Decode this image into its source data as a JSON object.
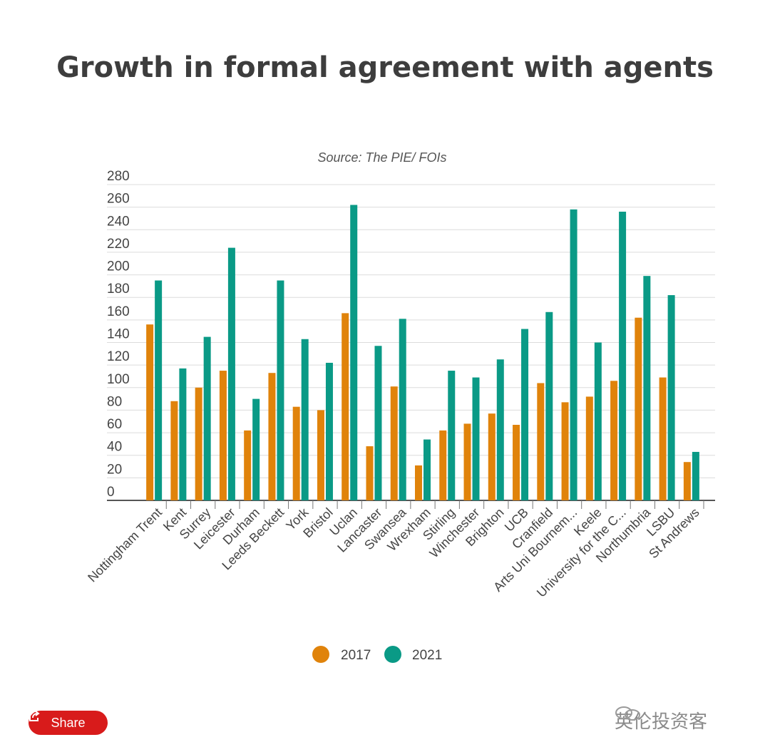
{
  "chart_data": {
    "type": "bar",
    "title": "Growth in formal agreement with agents",
    "subtitle": "Source: The PIE/ FOIs",
    "categories": [
      "Nottingham Trent",
      "Kent",
      "Surrey",
      "Leicester",
      "Durham",
      "Leeds Beckett",
      "York",
      "Bristol",
      "Uclan",
      "Lancaster",
      "Swansea",
      "Wrexham",
      "Stirling",
      "Winchester",
      "Brighton",
      "UCB",
      "Cranfield",
      "Arts Uni Bournem...",
      "Keele",
      "University for the C...",
      "Northumbria",
      "LSBU",
      "St Andrews"
    ],
    "series": [
      {
        "name": "2017",
        "color": "#e0830b",
        "values": [
          156,
          88,
          100,
          115,
          62,
          113,
          83,
          80,
          166,
          48,
          101,
          31,
          62,
          68,
          77,
          67,
          104,
          87,
          92,
          106,
          162,
          109,
          34
        ]
      },
      {
        "name": "2021",
        "color": "#0a9a86",
        "values": [
          195,
          117,
          145,
          224,
          90,
          195,
          143,
          122,
          262,
          137,
          161,
          54,
          115,
          109,
          125,
          152,
          167,
          258,
          140,
          256,
          199,
          182,
          43
        ]
      }
    ],
    "yticks": [
      "0",
      "20",
      "40",
      "60",
      "80",
      "100",
      "120",
      "140",
      "160",
      "180",
      "200",
      "220",
      "240",
      "260",
      "280"
    ],
    "ylim": [
      0,
      280
    ],
    "grid": true,
    "legend": "bottom-center"
  },
  "share_label": "Share",
  "watermark": "英伦投资客"
}
